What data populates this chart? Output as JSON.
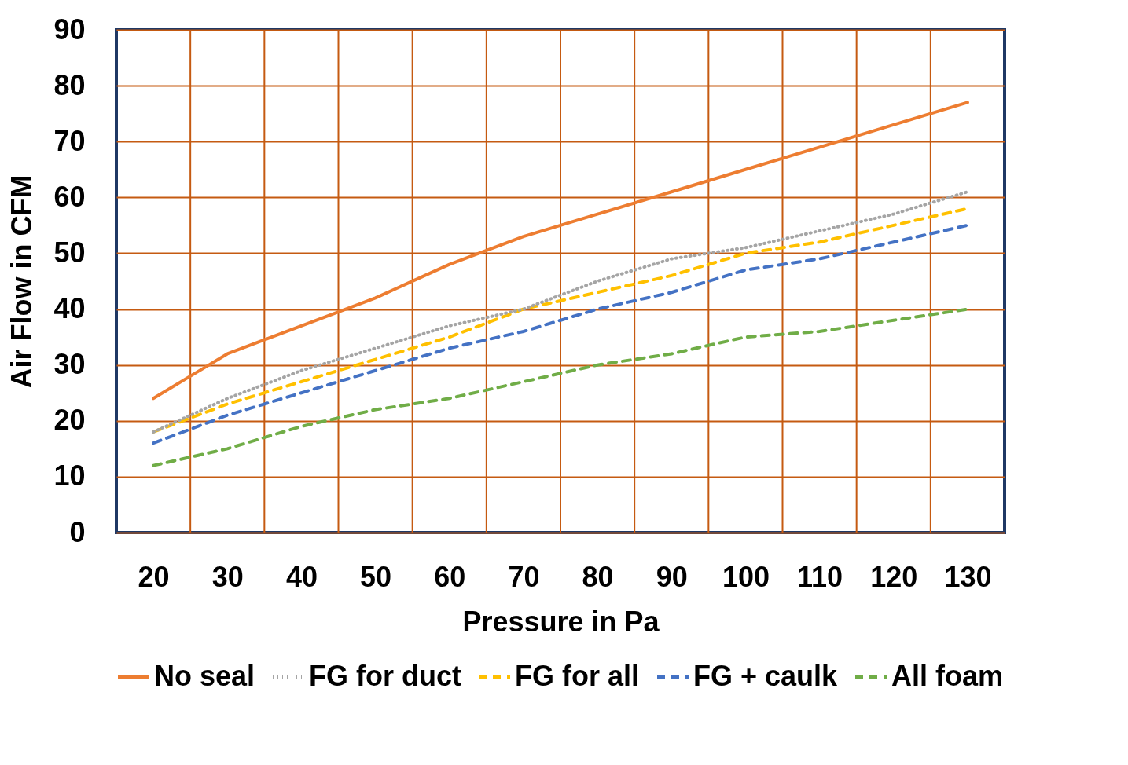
{
  "chart_data": {
    "type": "line",
    "xlabel": "Pressure in Pa",
    "ylabel": "Air Flow in CFM",
    "categories": [
      "20",
      "30",
      "40",
      "50",
      "60",
      "70",
      "80",
      "90",
      "100",
      "110",
      "120",
      "130"
    ],
    "ylim": [
      0,
      90
    ],
    "yticks": [
      0,
      10,
      20,
      30,
      40,
      50,
      60,
      70,
      80,
      90
    ],
    "grid": true,
    "legend": "bottom",
    "marker": "none",
    "series": [
      {
        "name": "No seal",
        "color": "#ed7d31",
        "line_style": "solid",
        "values": [
          24,
          32,
          37,
          42,
          48,
          53,
          57,
          61,
          65,
          69,
          73,
          77
        ]
      },
      {
        "name": "FG for duct",
        "color": "#a5a5a5",
        "line_style": "dotted",
        "values": [
          18,
          24,
          29,
          33,
          37,
          40,
          45,
          49,
          51,
          54,
          57,
          61
        ]
      },
      {
        "name": "FG for all",
        "color": "#ffc000",
        "line_style": "dashed",
        "values": [
          18,
          23,
          27,
          31,
          35,
          40,
          43,
          46,
          50,
          52,
          55,
          58
        ]
      },
      {
        "name": "FG + caulk",
        "color": "#4472c4",
        "line_style": "dashed",
        "values": [
          16,
          21,
          25,
          29,
          33,
          36,
          40,
          43,
          47,
          49,
          52,
          55
        ]
      },
      {
        "name": "All foam",
        "color": "#70ad47",
        "line_style": "dashed",
        "values": [
          12,
          15,
          19,
          22,
          24,
          27,
          30,
          32,
          35,
          36,
          38,
          40
        ]
      }
    ]
  }
}
